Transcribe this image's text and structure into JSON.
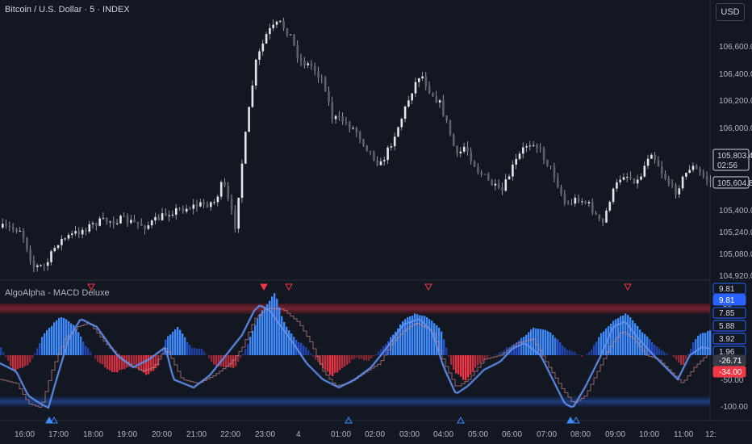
{
  "header": {
    "symbol_title": "Bitcoin / U.S. Dollar · 5 · INDEX",
    "currency": "USD"
  },
  "indicator": {
    "title": "AlgoAlpha - MACD Deluxe"
  },
  "price_axis": {
    "ticks": [
      "106,600.00",
      "106,400.00",
      "106,200.00",
      "106,000.00",
      "105,400.00",
      "105,240.00",
      "105,080.00",
      "104,920.00"
    ],
    "last_price": "105,803.40",
    "countdown": "02:56",
    "reference_price": "105,604.88"
  },
  "macd_axis": {
    "ticks": [
      "50",
      "-50.00",
      "-100.00"
    ],
    "labels": [
      {
        "text": "9.81",
        "kind": "blue-outline"
      },
      {
        "text": "9.81",
        "kind": "blue-fill"
      },
      {
        "text": "7.85",
        "kind": "blue-outline"
      },
      {
        "text": "5.88",
        "kind": "blue-outline"
      },
      {
        "text": "3.92",
        "kind": "blue-outline"
      },
      {
        "text": "1.96",
        "kind": "blue-outline"
      },
      {
        "text": "-26.71",
        "kind": "gray-fill"
      },
      {
        "text": "-34.00",
        "kind": "red-fill"
      }
    ]
  },
  "time_axis": {
    "ticks": [
      "16:00",
      "17:00",
      "18:00",
      "19:00",
      "20:00",
      "21:00",
      "22:00",
      "23:00",
      "4",
      "01:00",
      "02:00",
      "03:00",
      "04:00",
      "05:00",
      "06:00",
      "07:00",
      "08:00",
      "09:00",
      "10:00",
      "11:00",
      "12:"
    ]
  },
  "colors": {
    "background": "#131722",
    "candle": "#b2b5be",
    "bull_histogram": "#2962ff",
    "bull_histogram_light": "#3d8bff",
    "bear_histogram": "#f23645",
    "signal_line": "#c88a8a",
    "upper_band": "#6b1f2b",
    "lower_band": "#1c3a78",
    "axis_text": "#b2b5be"
  },
  "signals": {
    "bearish_marker": "triangle-down-icon",
    "bullish_marker": "triangle-up-icon"
  }
}
